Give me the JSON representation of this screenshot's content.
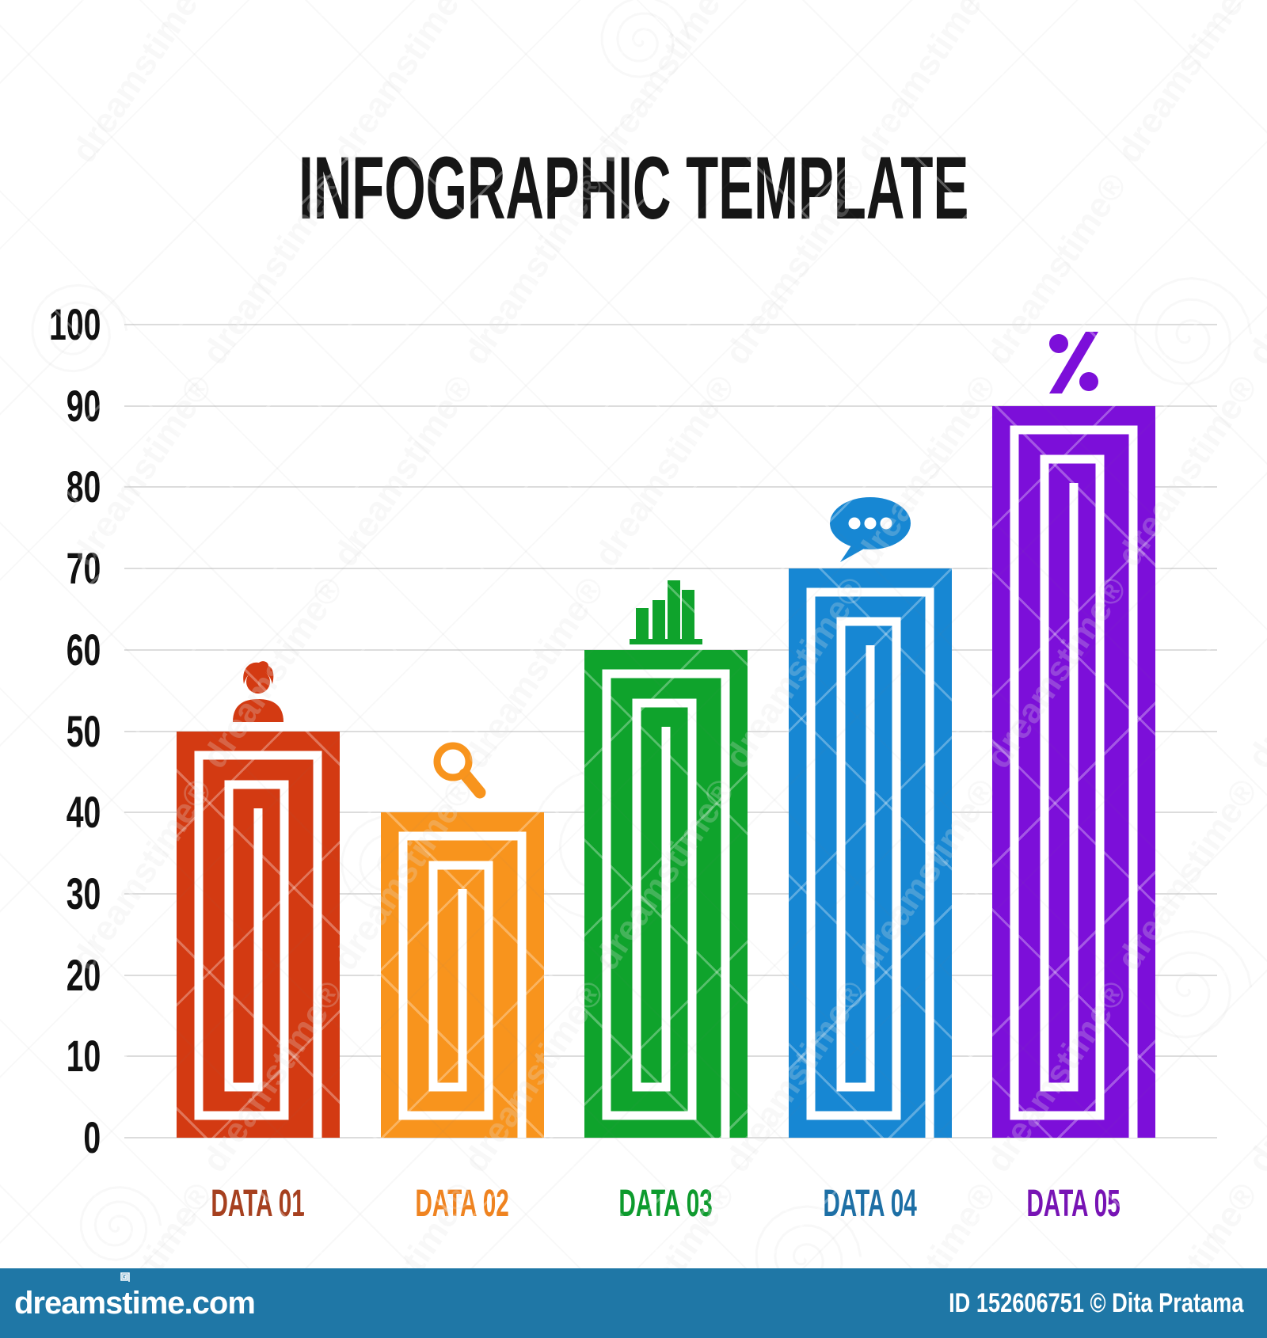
{
  "title": "INFOGRAPHIC TEMPLATE",
  "chart_data": {
    "type": "bar",
    "title": "INFOGRAPHIC TEMPLATE",
    "categories": [
      "DATA 01",
      "DATA 02",
      "DATA 03",
      "DATA 04",
      "DATA 05"
    ],
    "values": [
      50,
      40,
      60,
      70,
      90
    ],
    "xlabel": "",
    "ylabel": "",
    "ylim": [
      0,
      100
    ],
    "ytick_step": 10,
    "ytick_labels": [
      "0",
      "10",
      "20",
      "30",
      "40",
      "50",
      "60",
      "70",
      "80",
      "90",
      "100"
    ],
    "grid": true,
    "legend": false,
    "bar_colors": [
      "#d33a12",
      "#f8941d",
      "#0fa32c",
      "#1787d3",
      "#7c0fd9"
    ],
    "label_colors": [
      "#a6401f",
      "#ef8320",
      "#0d9b2d",
      "#1d6fa5",
      "#7713b4"
    ],
    "bar_icons": [
      "person",
      "magnifier",
      "bar-chart",
      "speech-bubble",
      "percent"
    ]
  },
  "watermark": {
    "site": "dreamstime.com",
    "credit": "ID 152606751 © Dita Pratama",
    "diagonal_text": "dreamstime",
    "reg_mark": "®"
  },
  "colors": {
    "background": "#ffffff",
    "footer_bg": "#1f77a6",
    "grid": "#dcdcdc",
    "title": "#161616",
    "tick": "#111111"
  }
}
